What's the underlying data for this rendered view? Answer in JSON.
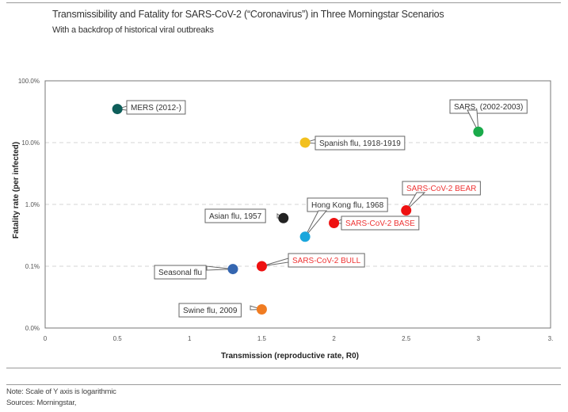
{
  "header": {
    "title": "Transmissibility and Fatality for SARS-CoV-2 (“Coronavirus”) in Three Morningstar Scenarios",
    "subtitle": "With a backdrop of historical viral outbreaks"
  },
  "footer": {
    "note": "Note: Scale of Y axis is logarithmic",
    "sources": "Sources: Morningstar,"
  },
  "chart_data": {
    "type": "scatter",
    "title": "Transmissibility and Fatality for SARS-CoV-2 (“Coronavirus”) in Three Morningstar Scenarios",
    "subtitle": "With a backdrop of historical viral outbreaks",
    "xlabel": "Transmission (reproductive rate, R0)",
    "ylabel": "Fatality rate (per infected)",
    "xlim": [
      0,
      3.5
    ],
    "ylim": [
      0.0001,
      1.0
    ],
    "yscale": "log",
    "grid": "horizontal dashed",
    "x_ticks": [
      {
        "value": 0,
        "label": "0"
      },
      {
        "value": 0.5,
        "label": "0.5"
      },
      {
        "value": 1,
        "label": "1"
      },
      {
        "value": 1.5,
        "label": "1.5"
      },
      {
        "value": 2,
        "label": "2"
      },
      {
        "value": 2.5,
        "label": "2.5"
      },
      {
        "value": 3,
        "label": "3"
      },
      {
        "value": 3.5,
        "label": "3."
      }
    ],
    "y_ticks": [
      {
        "value": 1.0,
        "label": "100.0%"
      },
      {
        "value": 0.1,
        "label": "10.0%"
      },
      {
        "value": 0.01,
        "label": "1.0%"
      },
      {
        "value": 0.001,
        "label": "0.1%"
      },
      {
        "value": 0.0001,
        "label": "0.0%"
      }
    ],
    "points": [
      {
        "name": "MERS (2012-)",
        "x": 0.5,
        "y": 0.35,
        "color": "#0e5e5a",
        "label_color": "#333333",
        "label_pos": "right"
      },
      {
        "name": "SARS, (2002-2003)",
        "x": 3.0,
        "y": 0.15,
        "color": "#1aaa4a",
        "label_color": "#333333",
        "label_pos": "above"
      },
      {
        "name": "Spanish flu, 1918-1919",
        "x": 1.8,
        "y": 0.1,
        "color": "#f2c01e",
        "label_color": "#333333",
        "label_pos": "right"
      },
      {
        "name": "SARS-CoV-2 BEAR",
        "x": 2.5,
        "y": 0.008,
        "color": "#ee1111",
        "label_color": "#ee3333",
        "label_pos": "above"
      },
      {
        "name": "Asian flu, 1957",
        "x": 1.65,
        "y": 0.006,
        "color": "#222222",
        "label_color": "#333333",
        "label_pos": "left"
      },
      {
        "name": "SARS-CoV-2 BASE",
        "x": 2.0,
        "y": 0.005,
        "color": "#ee1111",
        "label_color": "#ee3333",
        "label_pos": "right"
      },
      {
        "name": "Hong Kong flu, 1968",
        "x": 1.8,
        "y": 0.003,
        "color": "#1aa6dc",
        "label_color": "#333333",
        "label_pos": "above"
      },
      {
        "name": "SARS-CoV-2 BULL",
        "x": 1.5,
        "y": 0.001,
        "color": "#ee1111",
        "label_color": "#ee3333",
        "label_pos": "right"
      },
      {
        "name": "Seasonal flu",
        "x": 1.3,
        "y": 0.0009,
        "color": "#3566b0",
        "label_color": "#333333",
        "label_pos": "left"
      },
      {
        "name": "Swine flu, 2009",
        "x": 1.5,
        "y": 0.0002,
        "color": "#f07c22",
        "label_color": "#333333",
        "label_pos": "left"
      }
    ]
  }
}
